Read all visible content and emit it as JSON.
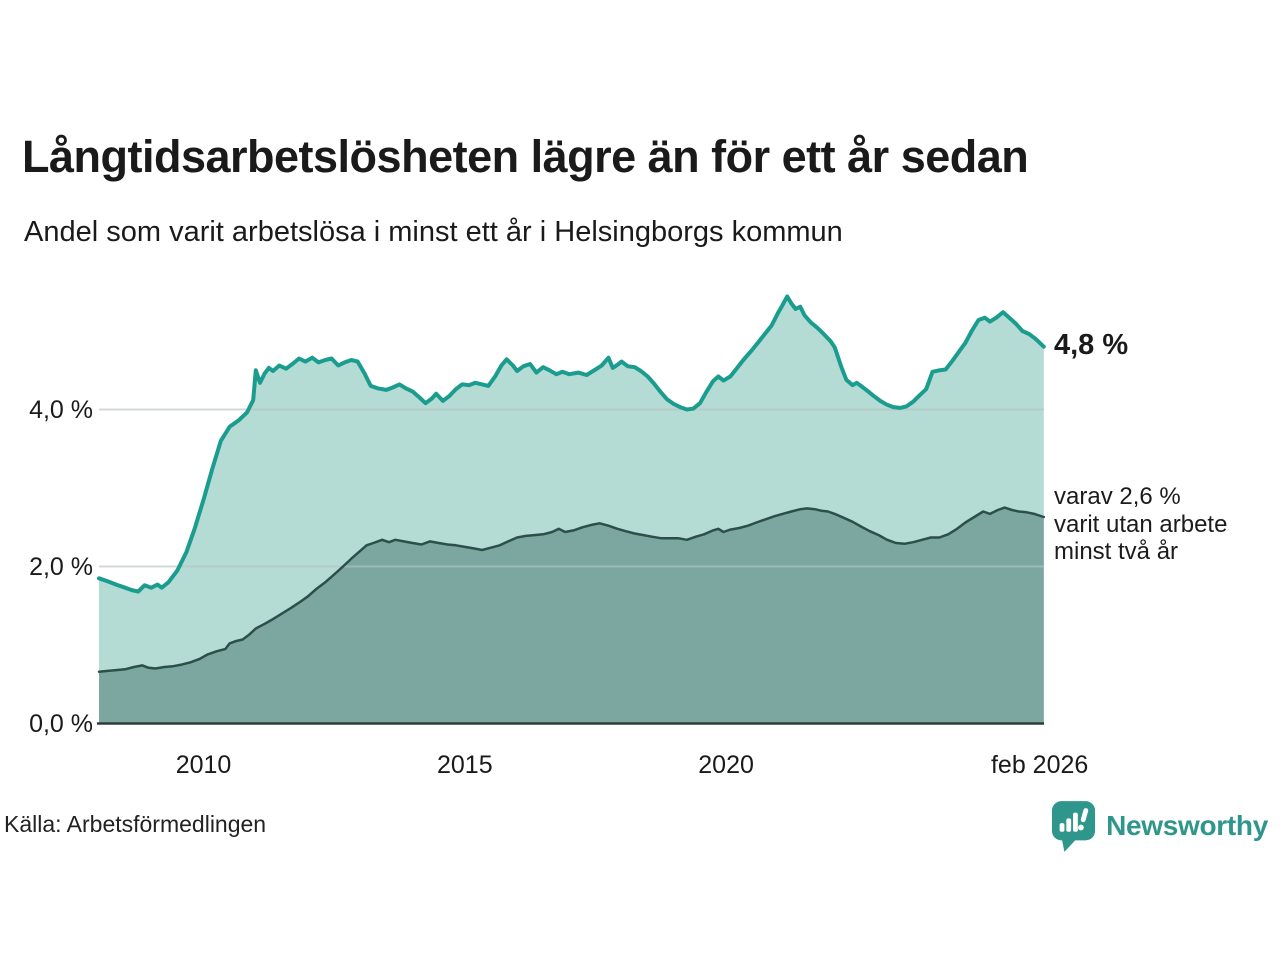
{
  "header": {
    "title": "Långtidsarbetslösheten lägre än för ett år sedan",
    "subtitle": "Andel som varit arbetslösa i minst ett år i Helsingborgs kommun"
  },
  "chart_data": {
    "type": "area",
    "title": "Långtidsarbetslösheten lägre än för ett år sedan",
    "subtitle": "Andel som varit arbetslösa i minst ett år i Helsingborgs kommun",
    "x_axis": {
      "range_years": [
        2008.0,
        2026.083
      ],
      "ticks": [
        {
          "label": "2010",
          "year": 2010
        },
        {
          "label": "2015",
          "year": 2015
        },
        {
          "label": "2020",
          "year": 2020
        },
        {
          "label": "feb 2026",
          "year": 2026.0
        }
      ]
    },
    "y_axis": {
      "unit": "%",
      "range": [
        0,
        5.8
      ],
      "gridline_values": [
        2.0,
        4.0
      ],
      "ticks": [
        {
          "label": "4,0 %",
          "value": 4.0
        },
        {
          "label": "2,0 %",
          "value": 2.0
        },
        {
          "label": "0,0 %",
          "value": 0.0
        }
      ]
    },
    "annotations": {
      "end_value_label": "4,8 %",
      "secondary": [
        "varav 2,6 %",
        "varit utan arbete",
        "minst två år"
      ]
    },
    "series": [
      {
        "name": "Andel arbetslösa minst ett år",
        "end_value": 4.8,
        "line_color": "#1a9c8f",
        "fill_color": "#b5dbd5",
        "line_width": 4,
        "points": [
          [
            2008.0,
            1.85
          ],
          [
            2008.17,
            1.81
          ],
          [
            2008.33,
            1.77
          ],
          [
            2008.5,
            1.73
          ],
          [
            2008.62,
            1.7
          ],
          [
            2008.75,
            1.68
          ],
          [
            2008.87,
            1.76
          ],
          [
            2009.0,
            1.73
          ],
          [
            2009.12,
            1.77
          ],
          [
            2009.2,
            1.73
          ],
          [
            2009.33,
            1.8
          ],
          [
            2009.5,
            1.95
          ],
          [
            2009.67,
            2.18
          ],
          [
            2009.83,
            2.48
          ],
          [
            2010.0,
            2.85
          ],
          [
            2010.17,
            3.25
          ],
          [
            2010.33,
            3.6
          ],
          [
            2010.5,
            3.78
          ],
          [
            2010.67,
            3.86
          ],
          [
            2010.83,
            3.96
          ],
          [
            2010.95,
            4.12
          ],
          [
            2011.0,
            4.5
          ],
          [
            2011.08,
            4.34
          ],
          [
            2011.17,
            4.46
          ],
          [
            2011.25,
            4.53
          ],
          [
            2011.33,
            4.49
          ],
          [
            2011.45,
            4.56
          ],
          [
            2011.58,
            4.52
          ],
          [
            2011.7,
            4.58
          ],
          [
            2011.83,
            4.65
          ],
          [
            2011.95,
            4.61
          ],
          [
            2012.08,
            4.66
          ],
          [
            2012.2,
            4.6
          ],
          [
            2012.33,
            4.63
          ],
          [
            2012.45,
            4.65
          ],
          [
            2012.58,
            4.56
          ],
          [
            2012.7,
            4.6
          ],
          [
            2012.83,
            4.63
          ],
          [
            2012.95,
            4.61
          ],
          [
            2013.08,
            4.46
          ],
          [
            2013.2,
            4.3
          ],
          [
            2013.33,
            4.27
          ],
          [
            2013.5,
            4.25
          ],
          [
            2013.62,
            4.28
          ],
          [
            2013.75,
            4.32
          ],
          [
            2013.87,
            4.27
          ],
          [
            2014.0,
            4.23
          ],
          [
            2014.12,
            4.16
          ],
          [
            2014.25,
            4.08
          ],
          [
            2014.37,
            4.14
          ],
          [
            2014.45,
            4.2
          ],
          [
            2014.58,
            4.11
          ],
          [
            2014.7,
            4.17
          ],
          [
            2014.83,
            4.26
          ],
          [
            2014.95,
            4.32
          ],
          [
            2015.08,
            4.31
          ],
          [
            2015.2,
            4.34
          ],
          [
            2015.33,
            4.32
          ],
          [
            2015.45,
            4.3
          ],
          [
            2015.58,
            4.42
          ],
          [
            2015.7,
            4.56
          ],
          [
            2015.8,
            4.64
          ],
          [
            2015.92,
            4.56
          ],
          [
            2016.0,
            4.49
          ],
          [
            2016.12,
            4.55
          ],
          [
            2016.25,
            4.58
          ],
          [
            2016.37,
            4.47
          ],
          [
            2016.5,
            4.54
          ],
          [
            2016.62,
            4.5
          ],
          [
            2016.75,
            4.45
          ],
          [
            2016.87,
            4.48
          ],
          [
            2017.0,
            4.45
          ],
          [
            2017.17,
            4.47
          ],
          [
            2017.33,
            4.44
          ],
          [
            2017.5,
            4.51
          ],
          [
            2017.62,
            4.56
          ],
          [
            2017.75,
            4.66
          ],
          [
            2017.83,
            4.53
          ],
          [
            2017.92,
            4.57
          ],
          [
            2018.0,
            4.61
          ],
          [
            2018.12,
            4.55
          ],
          [
            2018.25,
            4.54
          ],
          [
            2018.37,
            4.49
          ],
          [
            2018.5,
            4.42
          ],
          [
            2018.62,
            4.33
          ],
          [
            2018.75,
            4.22
          ],
          [
            2018.87,
            4.13
          ],
          [
            2019.0,
            4.07
          ],
          [
            2019.12,
            4.03
          ],
          [
            2019.25,
            4.0
          ],
          [
            2019.37,
            4.01
          ],
          [
            2019.5,
            4.08
          ],
          [
            2019.62,
            4.22
          ],
          [
            2019.75,
            4.36
          ],
          [
            2019.85,
            4.42
          ],
          [
            2019.95,
            4.37
          ],
          [
            2020.08,
            4.42
          ],
          [
            2020.2,
            4.52
          ],
          [
            2020.33,
            4.63
          ],
          [
            2020.5,
            4.76
          ],
          [
            2020.62,
            4.86
          ],
          [
            2020.75,
            4.97
          ],
          [
            2020.87,
            5.07
          ],
          [
            2021.0,
            5.24
          ],
          [
            2021.08,
            5.33
          ],
          [
            2021.17,
            5.44
          ],
          [
            2021.25,
            5.35
          ],
          [
            2021.33,
            5.28
          ],
          [
            2021.42,
            5.31
          ],
          [
            2021.5,
            5.2
          ],
          [
            2021.62,
            5.11
          ],
          [
            2021.75,
            5.04
          ],
          [
            2021.87,
            4.96
          ],
          [
            2022.0,
            4.87
          ],
          [
            2022.08,
            4.79
          ],
          [
            2022.2,
            4.55
          ],
          [
            2022.3,
            4.38
          ],
          [
            2022.42,
            4.31
          ],
          [
            2022.5,
            4.34
          ],
          [
            2022.58,
            4.3
          ],
          [
            2022.7,
            4.24
          ],
          [
            2022.83,
            4.17
          ],
          [
            2022.95,
            4.11
          ],
          [
            2023.08,
            4.06
          ],
          [
            2023.2,
            4.03
          ],
          [
            2023.33,
            4.02
          ],
          [
            2023.45,
            4.04
          ],
          [
            2023.58,
            4.1
          ],
          [
            2023.7,
            4.18
          ],
          [
            2023.83,
            4.26
          ],
          [
            2023.95,
            4.48
          ],
          [
            2024.08,
            4.5
          ],
          [
            2024.2,
            4.51
          ],
          [
            2024.33,
            4.62
          ],
          [
            2024.45,
            4.73
          ],
          [
            2024.58,
            4.85
          ],
          [
            2024.7,
            5.0
          ],
          [
            2024.83,
            5.14
          ],
          [
            2024.95,
            5.17
          ],
          [
            2025.05,
            5.12
          ],
          [
            2025.17,
            5.17
          ],
          [
            2025.3,
            5.24
          ],
          [
            2025.42,
            5.17
          ],
          [
            2025.55,
            5.09
          ],
          [
            2025.67,
            5.0
          ],
          [
            2025.8,
            4.96
          ],
          [
            2025.92,
            4.9
          ],
          [
            2026.08,
            4.8
          ]
        ]
      },
      {
        "name": "varav utan arbete minst två år",
        "end_value": 2.6,
        "line_color": "#2d4f49",
        "fill_color": "#7ca7a1",
        "line_width": 2.5,
        "points": [
          [
            2008.0,
            0.66
          ],
          [
            2008.17,
            0.67
          ],
          [
            2008.33,
            0.68
          ],
          [
            2008.5,
            0.69
          ],
          [
            2008.67,
            0.72
          ],
          [
            2008.83,
            0.74
          ],
          [
            2008.95,
            0.71
          ],
          [
            2009.08,
            0.7
          ],
          [
            2009.25,
            0.72
          ],
          [
            2009.42,
            0.73
          ],
          [
            2009.58,
            0.75
          ],
          [
            2009.75,
            0.78
          ],
          [
            2009.92,
            0.82
          ],
          [
            2010.08,
            0.88
          ],
          [
            2010.25,
            0.92
          ],
          [
            2010.42,
            0.95
          ],
          [
            2010.5,
            1.02
          ],
          [
            2010.62,
            1.05
          ],
          [
            2010.75,
            1.07
          ],
          [
            2010.87,
            1.13
          ],
          [
            2011.0,
            1.21
          ],
          [
            2011.17,
            1.27
          ],
          [
            2011.33,
            1.33
          ],
          [
            2011.5,
            1.4
          ],
          [
            2011.67,
            1.47
          ],
          [
            2011.83,
            1.54
          ],
          [
            2012.0,
            1.62
          ],
          [
            2012.17,
            1.72
          ],
          [
            2012.33,
            1.8
          ],
          [
            2012.5,
            1.9
          ],
          [
            2012.67,
            2.0
          ],
          [
            2012.83,
            2.1
          ],
          [
            2013.0,
            2.2
          ],
          [
            2013.12,
            2.27
          ],
          [
            2013.25,
            2.3
          ],
          [
            2013.42,
            2.34
          ],
          [
            2013.55,
            2.31
          ],
          [
            2013.67,
            2.34
          ],
          [
            2013.83,
            2.32
          ],
          [
            2014.0,
            2.3
          ],
          [
            2014.17,
            2.28
          ],
          [
            2014.33,
            2.32
          ],
          [
            2014.5,
            2.3
          ],
          [
            2014.67,
            2.28
          ],
          [
            2014.83,
            2.27
          ],
          [
            2015.0,
            2.25
          ],
          [
            2015.17,
            2.23
          ],
          [
            2015.33,
            2.21
          ],
          [
            2015.5,
            2.24
          ],
          [
            2015.67,
            2.27
          ],
          [
            2015.83,
            2.32
          ],
          [
            2016.0,
            2.37
          ],
          [
            2016.17,
            2.39
          ],
          [
            2016.33,
            2.4
          ],
          [
            2016.5,
            2.41
          ],
          [
            2016.67,
            2.44
          ],
          [
            2016.8,
            2.48
          ],
          [
            2016.92,
            2.44
          ],
          [
            2017.08,
            2.46
          ],
          [
            2017.25,
            2.5
          ],
          [
            2017.42,
            2.53
          ],
          [
            2017.58,
            2.55
          ],
          [
            2017.75,
            2.52
          ],
          [
            2017.92,
            2.48
          ],
          [
            2018.08,
            2.45
          ],
          [
            2018.25,
            2.42
          ],
          [
            2018.42,
            2.4
          ],
          [
            2018.58,
            2.38
          ],
          [
            2018.75,
            2.36
          ],
          [
            2018.92,
            2.36
          ],
          [
            2019.08,
            2.36
          ],
          [
            2019.25,
            2.34
          ],
          [
            2019.42,
            2.38
          ],
          [
            2019.58,
            2.41
          ],
          [
            2019.75,
            2.46
          ],
          [
            2019.85,
            2.48
          ],
          [
            2019.95,
            2.44
          ],
          [
            2020.08,
            2.47
          ],
          [
            2020.25,
            2.49
          ],
          [
            2020.42,
            2.52
          ],
          [
            2020.58,
            2.56
          ],
          [
            2020.75,
            2.6
          ],
          [
            2020.92,
            2.64
          ],
          [
            2021.08,
            2.67
          ],
          [
            2021.25,
            2.7
          ],
          [
            2021.42,
            2.73
          ],
          [
            2021.55,
            2.74
          ],
          [
            2021.7,
            2.73
          ],
          [
            2021.83,
            2.71
          ],
          [
            2021.95,
            2.7
          ],
          [
            2022.08,
            2.67
          ],
          [
            2022.25,
            2.62
          ],
          [
            2022.42,
            2.57
          ],
          [
            2022.58,
            2.51
          ],
          [
            2022.75,
            2.45
          ],
          [
            2022.92,
            2.4
          ],
          [
            2023.08,
            2.34
          ],
          [
            2023.25,
            2.3
          ],
          [
            2023.42,
            2.29
          ],
          [
            2023.58,
            2.31
          ],
          [
            2023.75,
            2.34
          ],
          [
            2023.92,
            2.37
          ],
          [
            2024.08,
            2.37
          ],
          [
            2024.25,
            2.41
          ],
          [
            2024.42,
            2.48
          ],
          [
            2024.58,
            2.56
          ],
          [
            2024.75,
            2.63
          ],
          [
            2024.92,
            2.7
          ],
          [
            2025.05,
            2.67
          ],
          [
            2025.2,
            2.72
          ],
          [
            2025.33,
            2.75
          ],
          [
            2025.47,
            2.72
          ],
          [
            2025.6,
            2.7
          ],
          [
            2025.75,
            2.69
          ],
          [
            2025.9,
            2.67
          ],
          [
            2026.08,
            2.63
          ]
        ]
      }
    ],
    "gridline_color": "#b9c3c1",
    "baseline_color": "#2e3d3a"
  },
  "footer": {
    "source": "Källa: Arbetsförmedlingen",
    "brand": "Newsworthy",
    "brand_color": "#2f968b"
  }
}
